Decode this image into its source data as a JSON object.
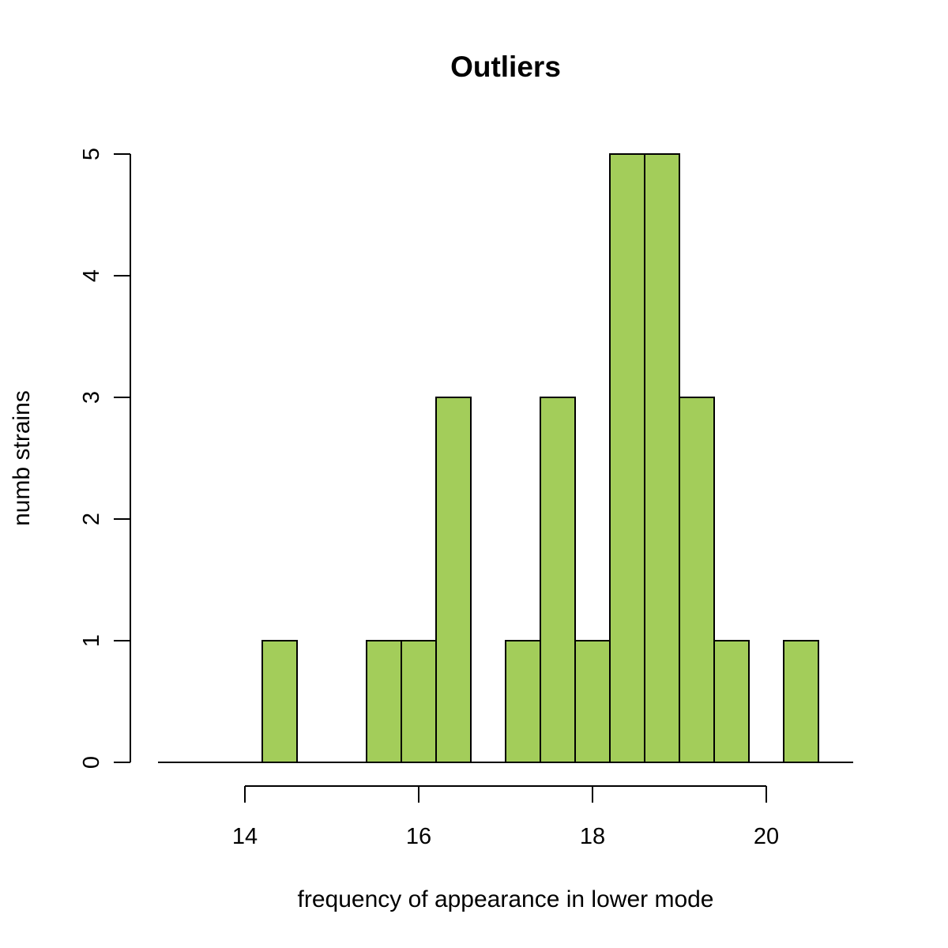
{
  "chart_data": {
    "type": "bar",
    "subtype": "histogram",
    "title": "Outliers",
    "xlabel": "frequency of appearance in lower mode",
    "ylabel": "numb strains",
    "bar_color": "#A3CD5A",
    "xlim": [
      13,
      21
    ],
    "ylim": [
      0,
      5
    ],
    "x_ticks": [
      {
        "value": 14,
        "label": "14"
      },
      {
        "value": 16,
        "label": "16"
      },
      {
        "value": 18,
        "label": "18"
      },
      {
        "value": 20,
        "label": "20"
      }
    ],
    "y_ticks": [
      {
        "value": 0,
        "label": "0"
      },
      {
        "value": 1,
        "label": "1"
      },
      {
        "value": 2,
        "label": "2"
      },
      {
        "value": 3,
        "label": "3"
      },
      {
        "value": 4,
        "label": "4"
      },
      {
        "value": 5,
        "label": "5"
      }
    ],
    "bin_edges": [
      13.0,
      13.4,
      13.8,
      14.2,
      14.6,
      15.0,
      15.4,
      15.8,
      16.2,
      16.6,
      17.0,
      17.4,
      17.8,
      18.2,
      18.6,
      19.0,
      19.4,
      19.8,
      20.2,
      20.6
    ],
    "counts": [
      0,
      0,
      0,
      1,
      0,
      0,
      1,
      1,
      3,
      0,
      1,
      3,
      1,
      5,
      5,
      3,
      1,
      0,
      1
    ],
    "grid": false,
    "legend": "none"
  }
}
